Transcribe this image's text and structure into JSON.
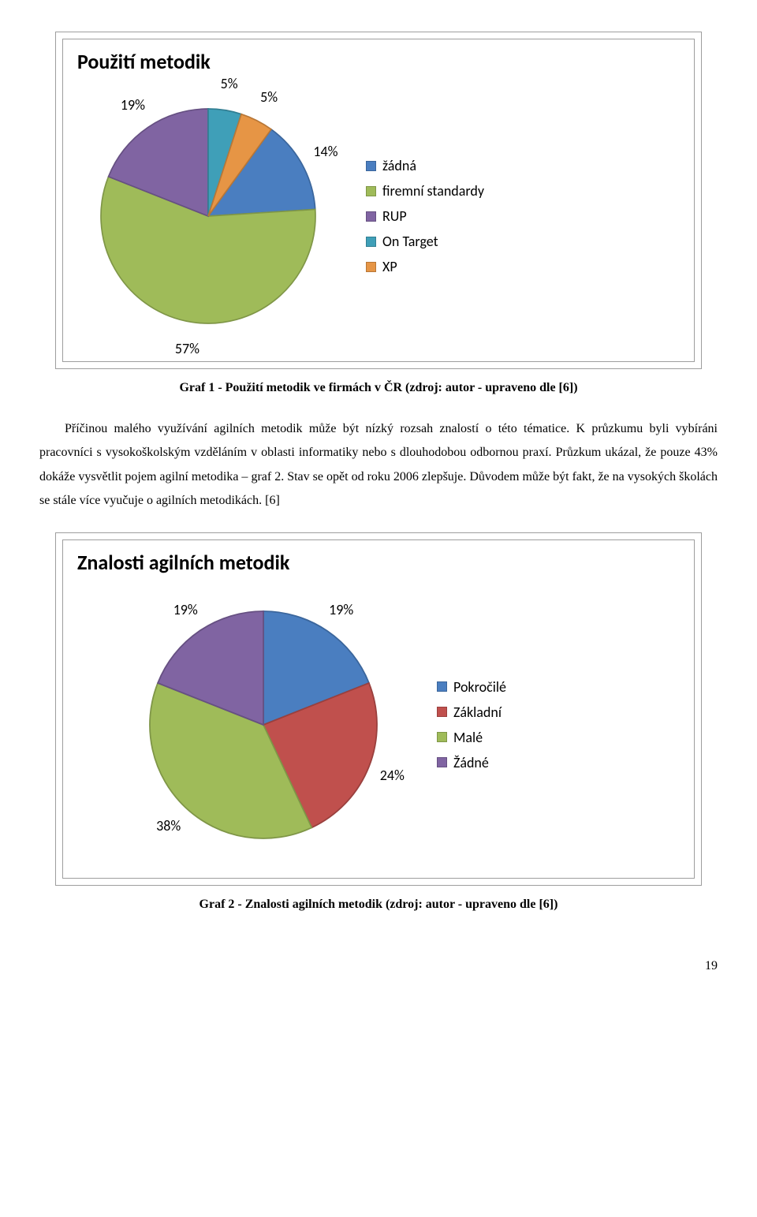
{
  "chart1": {
    "type": "pie",
    "title": "Použití metodik",
    "title_fontsize": 26,
    "label_fontsize": 18,
    "background_color": "#ffffff",
    "border_color": "#9e9e9e",
    "slices": [
      {
        "label": "žádná",
        "value": 14,
        "pct": "14%",
        "color": "#4a7ec0",
        "outline": "#3b669c"
      },
      {
        "label": "firemní standardy",
        "value": 57,
        "pct": "57%",
        "color": "#9fbb59",
        "outline": "#7f9647"
      },
      {
        "label": "RUP",
        "value": 19,
        "pct": "19%",
        "color": "#8064a2",
        "outline": "#665082"
      },
      {
        "label": "On Target",
        "value": 5,
        "pct": "5%",
        "color": "#3f9fb8",
        "outline": "#327f93"
      },
      {
        "label": "XP",
        "value": 5,
        "pct": "5%",
        "color": "#e69545",
        "outline": "#b87737"
      }
    ]
  },
  "caption1": "Graf 1 - Použití metodik ve firmách v ČR (zdroj: autor - upraveno dle [6])",
  "paragraph": "Příčinou malého využívání agilních metodik může být nízký rozsah znalostí o této tématice. K průzkumu byli vybíráni pracovníci s vysokoškolským vzděláním v oblasti informatiky nebo s dlouhodobou odbornou praxí. Průzkum ukázal, že pouze 43% dokáže vysvětlit pojem agilní metodika – graf 2. Stav se opět od roku 2006 zlepšuje. Důvodem může být fakt, že na vysokých školách se stále více vyučuje o agilních metodikách. [6]",
  "chart2": {
    "type": "pie",
    "title": "Znalosti agilních metodik",
    "title_fontsize": 26,
    "label_fontsize": 18,
    "background_color": "#ffffff",
    "border_color": "#9e9e9e",
    "slices": [
      {
        "label": "Pokročilé",
        "value": 19,
        "pct": "19%",
        "color": "#4a7ec0",
        "outline": "#3b669c"
      },
      {
        "label": "Základní",
        "value": 24,
        "pct": "24%",
        "color": "#c0504d",
        "outline": "#9a403e"
      },
      {
        "label": "Malé",
        "value": 38,
        "pct": "38%",
        "color": "#9fbb59",
        "outline": "#7f9647"
      },
      {
        "label": "Žádné",
        "value": 19,
        "pct": "19%",
        "color": "#8064a2",
        "outline": "#665082"
      }
    ]
  },
  "caption2": "Graf 2 - Znalosti agilních metodik (zdroj: autor - upraveno dle [6])",
  "page_number": "19"
}
